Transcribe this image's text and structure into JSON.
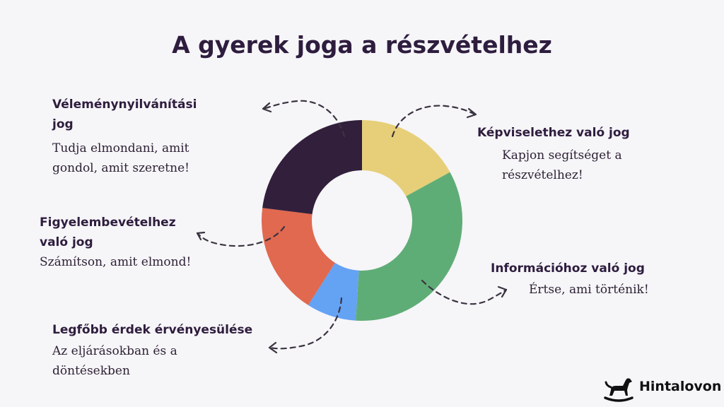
{
  "title": "A gyerek joga a részvételhez",
  "segments": [
    {
      "key": "kepviselethez",
      "color": "#e6cf78",
      "value": 17
    },
    {
      "key": "informaciohoz",
      "color": "#5fad76",
      "value": 34
    },
    {
      "key": "legfobb",
      "color": "#64a2f4",
      "value": 8
    },
    {
      "key": "figyelembevetelhez",
      "color": "#e0694f",
      "value": 18
    },
    {
      "key": "velemeny",
      "color": "#321f3c",
      "value": 23
    }
  ],
  "labels": {
    "velemeny": {
      "head_l1": "Véleménynyilvánítási",
      "head_l2": "jog",
      "desc_l1": "Tudja elmondani, amit",
      "desc_l2": "gondol, amit szeretne!"
    },
    "figyelembevetelhez": {
      "head_l1": "Figyelembevételhez",
      "head_l2": "való jog",
      "desc_l1": "Számítson, amit elmond!"
    },
    "legfobb": {
      "head_l1": "Legfőbb érdek érvényesülése",
      "desc_l1": "Az eljárásokban és a",
      "desc_l2": "döntésekben"
    },
    "kepviselethez": {
      "head_l1": "Képviselethez való jog",
      "desc_l1": "Kapjon segítséget a",
      "desc_l2": "részvételhez!"
    },
    "informaciohoz": {
      "head_l1": "Információhoz való jog",
      "desc_l1": "Értse, ami történik!"
    }
  },
  "brand": {
    "name": "Hintalovon",
    "icon": "rocking-horse-icon"
  }
}
